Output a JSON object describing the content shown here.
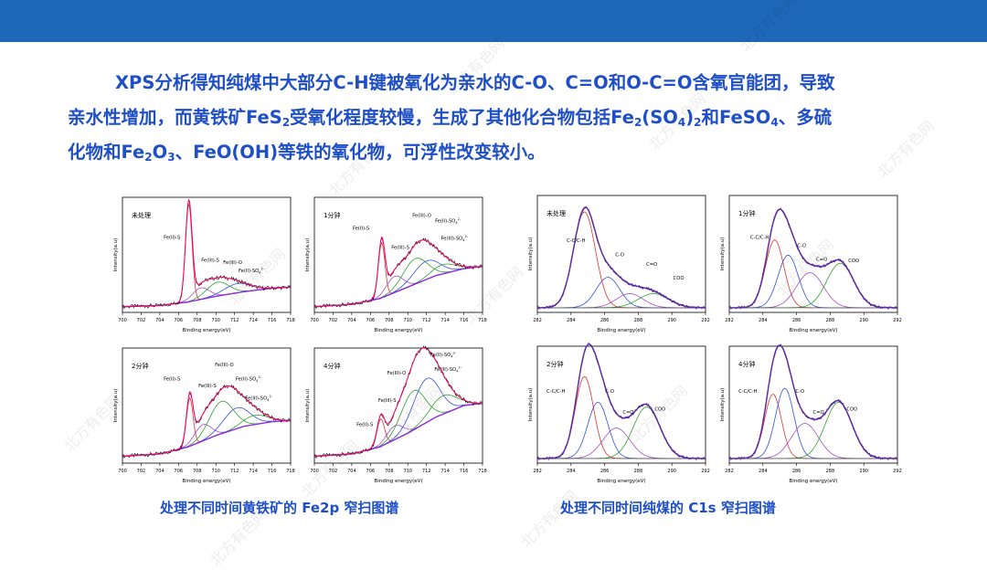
{
  "paragraph": {
    "line1": "XPS分析得知纯煤中大部分C-H键被氧化为亲水的C-O、C=O和O-C=O含氧官能团，导致",
    "line2_a": "亲水性增加，而黄铁矿FeS",
    "line2_sub": "2",
    "line2_b": "受氧化程度较慢，生成了其他化合物包括Fe",
    "line2_sub2": "2",
    "line2_c": "(SO",
    "line2_sub3": "4",
    "line2_d": ")",
    "line2_sub4": "2",
    "line2_e": "和FeSO",
    "line2_sub5": "4",
    "line2_f": "、多硫",
    "line3_a": "化物和Fe",
    "line3_sub": "2",
    "line3_b": "O",
    "line3_sub2": "3",
    "line3_c": "、FeO(OH)等铁的氧化物，可浮性改变较小。"
  },
  "captions": {
    "left": "处理不同时间黄铁矿的 Fe2p 窄扫图谱",
    "right": "处理不同时间纯煤的 C1s 窄扫图谱"
  },
  "watermark": "北方有色网",
  "colors": {
    "topbar": "#1f67b9",
    "text": "#1f4fc6",
    "raw": "#000000",
    "envelope": "#ff0066",
    "background": "#8a2be2",
    "comp_red": "#e03030",
    "comp_blue": "#3050e0",
    "comp_purple": "#a050c0",
    "comp_green": "#30a030",
    "c1s_envelope": "#5c2a9d"
  },
  "chart_data": [
    {
      "type": "line",
      "group": "Fe2p",
      "panel_title": "未处理",
      "xlabel": "Binding energy(eV)",
      "ylabel": "Intensity(a.u)",
      "xlim": [
        700,
        718
      ],
      "x_ticks": [
        "700",
        "702",
        "704",
        "706",
        "708",
        "710",
        "712",
        "714",
        "716",
        "718"
      ],
      "background": [
        [
          700,
          0.05
        ],
        [
          704,
          0.06
        ],
        [
          707,
          0.09
        ],
        [
          710,
          0.14
        ],
        [
          713,
          0.18
        ],
        [
          716,
          0.21
        ],
        [
          718,
          0.22
        ]
      ],
      "peaks": [
        {
          "name": "Fe(II)-S",
          "center": 707.1,
          "height": 0.85,
          "width": 0.35
        },
        {
          "name": "Fe(III)-S",
          "center": 708.4,
          "height": 0.1,
          "width": 0.9
        },
        {
          "name": "Fe(III)-O",
          "center": 710.2,
          "height": 0.12,
          "width": 1.2
        },
        {
          "name": "Fe(II)-SO4",
          "center": 712.3,
          "height": 0.08,
          "width": 1.4
        }
      ],
      "labels": [
        {
          "text": "Fe(II)-S",
          "x": 705.3,
          "y": 0.64
        },
        {
          "text": "Fe(III)-S",
          "x": 709.4,
          "y": 0.44
        },
        {
          "text": "Fe(III)-O",
          "x": 711.8,
          "y": 0.42
        },
        {
          "text": "Fe(II)-SO",
          "sub": "4",
          "sup": "2-",
          "x": 713.8,
          "y": 0.35
        }
      ]
    },
    {
      "type": "line",
      "group": "Fe2p",
      "panel_title": "1分钟",
      "xlabel": "Binding energy(eV)",
      "ylabel": "Intensity(a.u)",
      "xlim": [
        700,
        718
      ],
      "x_ticks": [
        "700",
        "702",
        "704",
        "706",
        "708",
        "710",
        "712",
        "714",
        "716",
        "718"
      ],
      "background": [
        [
          700,
          0.05
        ],
        [
          704,
          0.07
        ],
        [
          707,
          0.12
        ],
        [
          710,
          0.22
        ],
        [
          713,
          0.32
        ],
        [
          716,
          0.38
        ],
        [
          718,
          0.4
        ]
      ],
      "peaks": [
        {
          "name": "Fe(II)-S",
          "center": 707.2,
          "height": 0.48,
          "width": 0.35
        },
        {
          "name": "Fe(III)-S",
          "center": 708.6,
          "height": 0.14,
          "width": 0.9
        },
        {
          "name": "Fe(III)-O",
          "center": 710.8,
          "height": 0.22,
          "width": 1.3
        },
        {
          "name": "Fe(II)-SO4",
          "center": 712.0,
          "height": 0.16,
          "width": 1.4
        },
        {
          "name": "Fe(III)-SO4",
          "center": 713.8,
          "height": 0.08,
          "width": 1.3
        }
      ],
      "labels": [
        {
          "text": "Fe(II)-S",
          "x": 705.0,
          "y": 0.72
        },
        {
          "text": "Fe(III)-S",
          "x": 709.2,
          "y": 0.55
        },
        {
          "text": "Fe(III)-O",
          "x": 711.5,
          "y": 0.83
        },
        {
          "text": "Fe(II)-SO",
          "sub": "4",
          "sup": "2-",
          "x": 714.3,
          "y": 0.78
        },
        {
          "text": "Fe(III)-SO",
          "sub": "4",
          "sup": "2-",
          "x": 715.0,
          "y": 0.63
        }
      ]
    },
    {
      "type": "line",
      "group": "Fe2p",
      "panel_title": "2分钟",
      "xlabel": "Binding energy(eV)",
      "ylabel": "Intensity(a.u)",
      "xlim": [
        700,
        718
      ],
      "x_ticks": [
        "700",
        "702",
        "704",
        "706",
        "708",
        "710",
        "712",
        "714",
        "716",
        "718"
      ],
      "background": [
        [
          700,
          0.06
        ],
        [
          704,
          0.08
        ],
        [
          707,
          0.14
        ],
        [
          710,
          0.24
        ],
        [
          713,
          0.32
        ],
        [
          716,
          0.36
        ],
        [
          718,
          0.37
        ]
      ],
      "peaks": [
        {
          "name": "Fe(II)-S",
          "center": 707.2,
          "height": 0.42,
          "width": 0.35
        },
        {
          "name": "Fe(III)-S",
          "center": 708.6,
          "height": 0.14,
          "width": 0.9
        },
        {
          "name": "Fe(III)-O",
          "center": 710.6,
          "height": 0.28,
          "width": 1.3
        },
        {
          "name": "Fe(II)-SO4",
          "center": 712.2,
          "height": 0.18,
          "width": 1.4
        },
        {
          "name": "Fe(III)-SO4",
          "center": 714.2,
          "height": 0.08,
          "width": 1.3
        }
      ],
      "labels": [
        {
          "text": "Fe(II)-S",
          "x": 705.3,
          "y": 0.72
        },
        {
          "text": "Fe(III)-S",
          "x": 709.1,
          "y": 0.66
        },
        {
          "text": "Fe(III)-O",
          "x": 710.9,
          "y": 0.84
        },
        {
          "text": "Fe(II)-SO",
          "sub": "4",
          "sup": "2-",
          "x": 713.5,
          "y": 0.72
        },
        {
          "text": "Fe(III)-SO",
          "sub": "4",
          "sup": "2-",
          "x": 714.6,
          "y": 0.55
        }
      ]
    },
    {
      "type": "line",
      "group": "Fe2p",
      "panel_title": "4分钟",
      "xlabel": "Binding energy(eV)",
      "ylabel": "Intensity(a.u)",
      "xlim": [
        700,
        718
      ],
      "x_ticks": [
        "700",
        "702",
        "704",
        "706",
        "708",
        "710",
        "712",
        "714",
        "716",
        "718"
      ],
      "background": [
        [
          700,
          0.06
        ],
        [
          704,
          0.08
        ],
        [
          707,
          0.14
        ],
        [
          710,
          0.26
        ],
        [
          713,
          0.4
        ],
        [
          716,
          0.5
        ],
        [
          718,
          0.52
        ]
      ],
      "peaks": [
        {
          "name": "Fe(II)-S",
          "center": 707.1,
          "height": 0.24,
          "width": 0.4
        },
        {
          "name": "Fe(III)-S",
          "center": 708.6,
          "height": 0.12,
          "width": 0.9
        },
        {
          "name": "Fe(III)-O",
          "center": 710.6,
          "height": 0.34,
          "width": 1.3
        },
        {
          "name": "Fe(II)-SO4",
          "center": 712.0,
          "height": 0.38,
          "width": 1.4
        },
        {
          "name": "Fe(III)-SO4",
          "center": 713.8,
          "height": 0.16,
          "width": 1.4
        }
      ],
      "labels": [
        {
          "text": "Fe(II)-S",
          "x": 705.4,
          "y": 0.32
        },
        {
          "text": "Fe(III)-S",
          "x": 707.8,
          "y": 0.53
        },
        {
          "text": "Fe(III)-O",
          "x": 708.8,
          "y": 0.77
        },
        {
          "text": "Fe(II)-SO",
          "sub": "4",
          "sup": "2-",
          "x": 713.8,
          "y": 0.93
        },
        {
          "text": "Fe(III)-SO",
          "sub": "4",
          "sup": "2-",
          "x": 714.3,
          "y": 0.8
        }
      ]
    },
    {
      "type": "line",
      "group": "C1s",
      "panel_title": "未处理",
      "xlabel": "Binding energy(eV)",
      "ylabel": "Intensity(a.u)",
      "xlim": [
        282,
        292
      ],
      "x_ticks": [
        "282",
        "284",
        "286",
        "288",
        "290",
        "292"
      ],
      "baseline": 0.04,
      "peaks": [
        {
          "name": "C-C/C-H",
          "center": 284.8,
          "height": 0.82,
          "width": 0.65,
          "color": "comp_red"
        },
        {
          "name": "C-O",
          "center": 286.2,
          "height": 0.26,
          "width": 0.7,
          "color": "comp_blue"
        },
        {
          "name": "C=O",
          "center": 287.5,
          "height": 0.12,
          "width": 0.8,
          "color": "comp_purple"
        },
        {
          "name": "COO",
          "center": 288.9,
          "height": 0.12,
          "width": 0.9,
          "color": "comp_green"
        }
      ],
      "labels": [
        {
          "text": "C-C/C-H",
          "x": 284.3,
          "y": 0.6
        },
        {
          "text": "C-O",
          "x": 286.9,
          "y": 0.48
        },
        {
          "text": "C=O",
          "x": 288.8,
          "y": 0.4
        },
        {
          "text": "COO",
          "x": 290.4,
          "y": 0.28
        }
      ]
    },
    {
      "type": "line",
      "group": "C1s",
      "panel_title": "1分钟",
      "xlabel": "Binding energy(eV)",
      "ylabel": "Intensity(a.u)",
      "xlim": [
        282,
        292
      ],
      "x_ticks": [
        "282",
        "284",
        "286",
        "288",
        "290",
        "292"
      ],
      "baseline": 0.04,
      "peaks": [
        {
          "name": "C-C/C-H",
          "center": 284.7,
          "height": 0.58,
          "width": 0.55,
          "color": "comp_red"
        },
        {
          "name": "C-O",
          "center": 285.5,
          "height": 0.45,
          "width": 0.6,
          "color": "comp_blue"
        },
        {
          "name": "C=O",
          "center": 286.8,
          "height": 0.3,
          "width": 0.8,
          "color": "comp_purple"
        },
        {
          "name": "COO",
          "center": 288.6,
          "height": 0.38,
          "width": 0.8,
          "color": "comp_green"
        }
      ],
      "labels": [
        {
          "text": "C-C/C-H",
          "x": 283.8,
          "y": 0.63
        },
        {
          "text": "C-O",
          "x": 286.3,
          "y": 0.56
        },
        {
          "text": "C=O",
          "x": 287.5,
          "y": 0.44
        },
        {
          "text": "COO",
          "x": 289.4,
          "y": 0.43
        }
      ]
    },
    {
      "type": "line",
      "group": "C1s",
      "panel_title": "2分钟",
      "xlabel": "Binding energy(eV)",
      "ylabel": "Intensity(a.u)",
      "xlim": [
        282,
        292
      ],
      "x_ticks": [
        "282",
        "284",
        "286",
        "288",
        "290",
        "292"
      ],
      "baseline": 0.04,
      "peaks": [
        {
          "name": "C-C/C-H",
          "center": 284.8,
          "height": 0.7,
          "width": 0.55,
          "color": "comp_red"
        },
        {
          "name": "C-O",
          "center": 285.6,
          "height": 0.48,
          "width": 0.6,
          "color": "comp_blue"
        },
        {
          "name": "C=O",
          "center": 286.7,
          "height": 0.26,
          "width": 0.8,
          "color": "comp_purple"
        },
        {
          "name": "COO",
          "center": 288.5,
          "height": 0.44,
          "width": 0.8,
          "color": "comp_green"
        }
      ],
      "labels": [
        {
          "text": "C-C/C-H",
          "x": 283.1,
          "y": 0.6
        },
        {
          "text": "C-O",
          "x": 286.3,
          "y": 0.6
        },
        {
          "text": "C=O",
          "x": 287.4,
          "y": 0.42
        },
        {
          "text": "COO",
          "x": 289.3,
          "y": 0.45
        }
      ]
    },
    {
      "type": "line",
      "group": "C1s",
      "panel_title": "4分钟",
      "xlabel": "Binding energy(eV)",
      "ylabel": "Intensity(a.u)",
      "xlim": [
        282,
        292
      ],
      "x_ticks": [
        "282",
        "284",
        "286",
        "288",
        "290",
        "292"
      ],
      "baseline": 0.04,
      "peaks": [
        {
          "name": "C-C/C-H",
          "center": 284.6,
          "height": 0.55,
          "width": 0.5,
          "color": "comp_red"
        },
        {
          "name": "C-O",
          "center": 285.3,
          "height": 0.6,
          "width": 0.55,
          "color": "comp_blue"
        },
        {
          "name": "C=O",
          "center": 286.5,
          "height": 0.3,
          "width": 0.8,
          "color": "comp_purple"
        },
        {
          "name": "COO",
          "center": 288.5,
          "height": 0.48,
          "width": 0.8,
          "color": "comp_green"
        }
      ],
      "labels": [
        {
          "text": "C-C/C-H",
          "x": 283.1,
          "y": 0.6
        },
        {
          "text": "C-O",
          "x": 286.2,
          "y": 0.6
        },
        {
          "text": "C=O",
          "x": 287.3,
          "y": 0.42
        },
        {
          "text": "COO",
          "x": 289.3,
          "y": 0.45
        }
      ]
    }
  ]
}
